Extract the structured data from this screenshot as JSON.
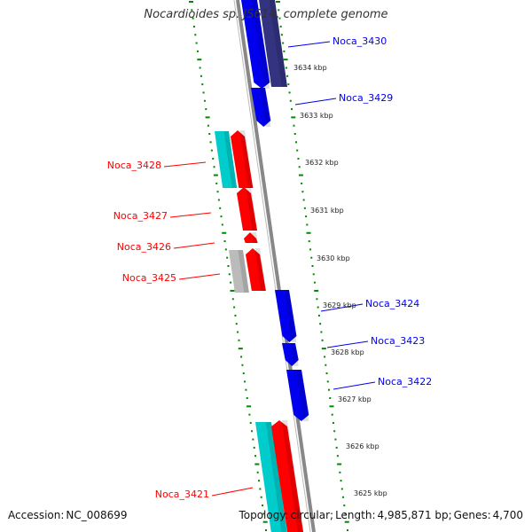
{
  "title": "Nocardioides sp. JS614, complete genome",
  "footer": {
    "accession_label": "Accession:",
    "accession": "NC_008699",
    "topology_label": "Topology:",
    "topology": "circular;",
    "length_label": "Length:",
    "length": "4,985,871 bp;",
    "genes_label": "Genes:",
    "genes": "4,700"
  },
  "colors": {
    "forward_cds": "#ff0000",
    "reverse_cds": "#0000ee",
    "forward_other": "#00cccc",
    "reverse_other": "#333380",
    "misc_feature": "#bbbbbb",
    "ruler_dots": "#008800",
    "backbone": "#888888"
  },
  "scale_ticks": [
    "3634 kbp",
    "3633 kbp",
    "3632 kbp",
    "3631 kbp",
    "3630 kbp",
    "3629 kbp",
    "3628 kbp",
    "3627 kbp",
    "3626 kbp",
    "3625 kbp"
  ],
  "features": [
    {
      "label": "Noca_3430",
      "strand": "reverse",
      "kind": "cds"
    },
    {
      "label": "Noca_3429",
      "strand": "reverse",
      "kind": "cds"
    },
    {
      "label": "Noca_3428",
      "strand": "forward",
      "kind": "cds"
    },
    {
      "label": "Noca_3427",
      "strand": "forward",
      "kind": "cds"
    },
    {
      "label": "Noca_3426",
      "strand": "forward",
      "kind": "cds"
    },
    {
      "label": "Noca_3425",
      "strand": "forward",
      "kind": "cds"
    },
    {
      "label": "Noca_3424",
      "strand": "reverse",
      "kind": "cds"
    },
    {
      "label": "Noca_3423",
      "strand": "reverse",
      "kind": "cds"
    },
    {
      "label": "Noca_3422",
      "strand": "reverse",
      "kind": "cds"
    },
    {
      "label": "Noca_3421",
      "strand": "forward",
      "kind": "cds"
    }
  ]
}
